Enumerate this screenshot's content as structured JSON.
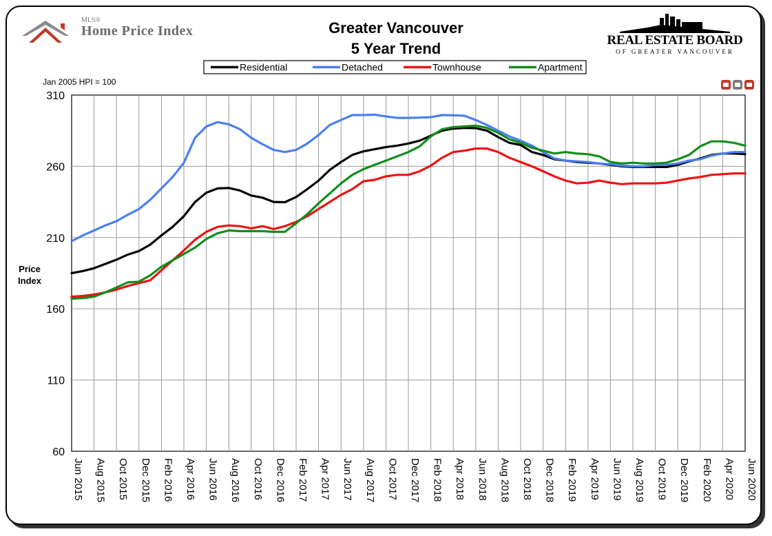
{
  "header": {
    "title_line1": "Greater Vancouver",
    "title_line2": "5 Year Trend",
    "hpi_logo_small": "MLS®",
    "hpi_logo_text": "Home Price Index",
    "board_name": "REAL ESTATE BOARD",
    "board_sub": "OF GREATER VANCOUVER"
  },
  "note": "Jan 2005 HPI = 100",
  "colors": {
    "residential": "#000000",
    "detached": "#4a7ff0",
    "townhouse": "#ee1111",
    "apartment": "#128c1c",
    "logo_red": "#c0392b",
    "logo_gray": "#7a7a7a"
  },
  "chart_data": {
    "type": "line",
    "title": "Greater Vancouver 5 Year Trend",
    "xlabel": "",
    "ylabel": "Price Index",
    "ylim": [
      60,
      310
    ],
    "yticks": [
      310,
      260,
      210,
      160,
      110,
      60
    ],
    "grid": true,
    "legend_position": "top",
    "x_tick_labels": [
      "Jun 2015",
      "Aug 2015",
      "Oct 2015",
      "Dec 2015",
      "Feb 2016",
      "Apr 2016",
      "Jun 2016",
      "Aug 2016",
      "Oct 2016",
      "Dec 2016",
      "Feb 2017",
      "Apr 2017",
      "Jun 2017",
      "Aug 2017",
      "Oct 2017",
      "Dec 2017",
      "Feb 2018",
      "Apr 2018",
      "Jun 2018",
      "Aug 2018",
      "Oct 2018",
      "Dec 2018",
      "Feb 2019",
      "Apr 2019",
      "Jun 2019",
      "Aug 2019",
      "Oct 2019",
      "Dec 2019",
      "Feb 2020",
      "Apr 2020",
      "Jun 2020"
    ],
    "x": [
      "Jun 2015",
      "Jul 2015",
      "Aug 2015",
      "Sep 2015",
      "Oct 2015",
      "Nov 2015",
      "Dec 2015",
      "Jan 2016",
      "Feb 2016",
      "Mar 2016",
      "Apr 2016",
      "May 2016",
      "Jun 2016",
      "Jul 2016",
      "Aug 2016",
      "Sep 2016",
      "Oct 2016",
      "Nov 2016",
      "Dec 2016",
      "Jan 2017",
      "Feb 2017",
      "Mar 2017",
      "Apr 2017",
      "May 2017",
      "Jun 2017",
      "Jul 2017",
      "Aug 2017",
      "Sep 2017",
      "Oct 2017",
      "Nov 2017",
      "Dec 2017",
      "Jan 2018",
      "Feb 2018",
      "Mar 2018",
      "Apr 2018",
      "May 2018",
      "Jun 2018",
      "Jul 2018",
      "Aug 2018",
      "Sep 2018",
      "Oct 2018",
      "Nov 2018",
      "Dec 2018",
      "Jan 2019",
      "Feb 2019",
      "Mar 2019",
      "Apr 2019",
      "May 2019",
      "Jun 2019",
      "Jul 2019",
      "Aug 2019",
      "Sep 2019",
      "Oct 2019",
      "Nov 2019",
      "Dec 2019",
      "Jan 2020",
      "Feb 2020",
      "Mar 2020",
      "Apr 2020",
      "May 2020",
      "Jun 2020"
    ],
    "series": [
      {
        "name": "Residential",
        "color": "#000000",
        "values": [
          185,
          186.5,
          188.5,
          191.5,
          194.5,
          198,
          200.5,
          205,
          211.5,
          217.5,
          225,
          235,
          241.5,
          244.5,
          244.8,
          243,
          239.5,
          238,
          235,
          234.8,
          238.5,
          244,
          250,
          257.5,
          263,
          268,
          270.5,
          272,
          273.5,
          274.5,
          276,
          278,
          281.5,
          285,
          286.5,
          287,
          286.8,
          285,
          280.5,
          276.5,
          275,
          270,
          268,
          265,
          264,
          263,
          262.5,
          262,
          261,
          260,
          259.5,
          259.5,
          259.5,
          259.5,
          261,
          263.5,
          265.5,
          268,
          269,
          269,
          268.5
        ]
      },
      {
        "name": "Detached",
        "color": "#4a7ff0",
        "values": [
          207.5,
          211.5,
          215,
          218.5,
          221.5,
          226,
          230,
          236.5,
          244.5,
          252.5,
          262.5,
          280,
          288,
          291,
          289.5,
          286,
          280,
          275.5,
          271.5,
          270,
          271.5,
          276,
          282,
          289,
          292.5,
          296,
          296,
          296.2,
          295,
          294,
          294,
          294.2,
          294.5,
          296,
          295.8,
          295.5,
          292.5,
          289,
          285,
          281,
          278,
          274.5,
          270,
          265.5,
          264,
          263.5,
          263,
          262,
          261.5,
          260.5,
          260,
          260,
          261,
          261,
          262,
          264,
          265,
          267.5,
          269,
          270,
          270
        ]
      },
      {
        "name": "Townhouse",
        "color": "#ee1111",
        "values": [
          168.5,
          169,
          170,
          171.5,
          173.5,
          176,
          178,
          180,
          187,
          194,
          201,
          208.5,
          214,
          217.5,
          218.5,
          218,
          216.5,
          218,
          216,
          218,
          221,
          225,
          230,
          235,
          240,
          244,
          249.5,
          250.5,
          253,
          254,
          254,
          256.5,
          260.5,
          266,
          270,
          271,
          272.5,
          272.5,
          270,
          266,
          263,
          260,
          256.5,
          253,
          250,
          248,
          248.5,
          250,
          248.5,
          247.5,
          248,
          248,
          248,
          248.5,
          250,
          251.5,
          252.5,
          254,
          254.5,
          255,
          255
        ]
      },
      {
        "name": "Apartment",
        "color": "#128c1c",
        "values": [
          167,
          167.5,
          168.5,
          171.5,
          175,
          178.5,
          179,
          183.5,
          189.5,
          194,
          198.5,
          203,
          209,
          213,
          215,
          214.5,
          214.5,
          214.5,
          214,
          214,
          220,
          226.5,
          234,
          241,
          248,
          254,
          258,
          261,
          264,
          267,
          270,
          274,
          281,
          286,
          287.5,
          288,
          288.5,
          287,
          283.5,
          279,
          276.5,
          273,
          271,
          269,
          270,
          269,
          268.5,
          267,
          263,
          262,
          262.5,
          262,
          262,
          262.5,
          265,
          268,
          274,
          277.5,
          277.5,
          276.5,
          274.5
        ]
      }
    ]
  }
}
